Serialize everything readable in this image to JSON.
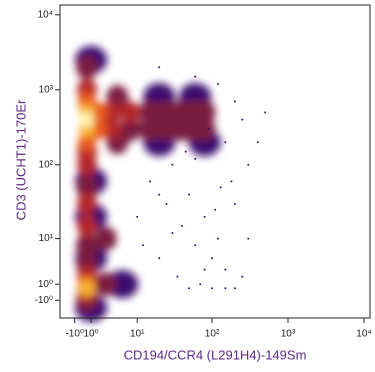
{
  "chart_data": {
    "type": "density",
    "xlabel": "CD194/CCR4 (L291H4)-149Sm",
    "ylabel": "CD3 (UCHT1)-170Er",
    "xscale": {
      "type": "asinh",
      "cofactor": 4
    },
    "yscale": {
      "type": "asinh",
      "cofactor": 4
    },
    "xlim": [
      -3,
      12000
    ],
    "ylim": [
      -3.5,
      13500
    ],
    "xticks": [
      {
        "value": -1,
        "label": "-10⁰"
      },
      {
        "value": 1,
        "label": "10⁰"
      },
      {
        "value": 10,
        "label": "10¹"
      },
      {
        "value": 100,
        "label": "10²"
      },
      {
        "value": 1000,
        "label": "10³"
      },
      {
        "value": 10000,
        "label": "10⁴"
      }
    ],
    "yticks": [
      {
        "value": -1,
        "label": "-10⁰"
      },
      {
        "value": 1,
        "label": "10⁰"
      },
      {
        "value": 10,
        "label": "10¹"
      },
      {
        "value": 100,
        "label": "10²"
      },
      {
        "value": 1000,
        "label": "10³"
      },
      {
        "value": 10000,
        "label": "10⁴"
      }
    ],
    "level_colors": [
      "#3b0f70",
      "#7a1d3f",
      "#b3262c",
      "#e8561a",
      "#f9b233",
      "#fff3a8"
    ],
    "density": {
      "x": [
        0.5,
        0.5,
        0.5,
        0.5,
        0.5,
        0.5,
        0.5,
        0.5,
        0.5,
        0.5,
        0.5,
        0.5,
        0.5,
        0.5,
        0.5,
        0.5,
        0.5,
        0.5,
        0.5,
        2,
        4,
        8,
        15,
        25,
        40,
        60,
        80,
        2,
        4,
        8,
        15,
        25,
        40,
        60,
        80,
        5,
        20,
        60,
        5,
        20,
        80,
        3,
        3,
        6,
        1,
        1,
        1,
        1,
        1
      ],
      "y": [
        2000,
        1000,
        700,
        500,
        400,
        300,
        200,
        150,
        100,
        50,
        30,
        15,
        8,
        4,
        2,
        1,
        0.5,
        0,
        -1,
        500,
        500,
        500,
        500,
        500,
        500,
        500,
        500,
        300,
        300,
        300,
        300,
        300,
        300,
        300,
        300,
        800,
        800,
        800,
        200,
        200,
        200,
        10,
        1,
        1,
        2500,
        60,
        20,
        5,
        -2
      ],
      "level": [
        2,
        3,
        4,
        5,
        6,
        5,
        4,
        3,
        3,
        2,
        3,
        3,
        2,
        2,
        3,
        4,
        5,
        3,
        2,
        4,
        3,
        3,
        2,
        2,
        2,
        2,
        2,
        4,
        3,
        2,
        2,
        2,
        2,
        2,
        2,
        2,
        1,
        1,
        2,
        1,
        1,
        2,
        2,
        1,
        1,
        1,
        1,
        1,
        1
      ]
    },
    "events": {
      "x": [
        15,
        25,
        40,
        60,
        100,
        150,
        30,
        50,
        80,
        120,
        200,
        300,
        150,
        250,
        200,
        120,
        60,
        20,
        10,
        20,
        35,
        70,
        100,
        150,
        200,
        50,
        300,
        400,
        180,
        90,
        45,
        12,
        250,
        130,
        80,
        60,
        500,
        20,
        30,
        110
      ],
      "y": [
        60,
        30,
        15,
        8,
        5,
        3,
        100,
        40,
        20,
        10,
        30,
        100,
        200,
        400,
        700,
        1200,
        1500,
        2000,
        20,
        5,
        2,
        1,
        0.5,
        0.5,
        0.5,
        0.5,
        10,
        200,
        60,
        300,
        150,
        8,
        2,
        50,
        3,
        120,
        500,
        40,
        12,
        25
      ]
    }
  }
}
